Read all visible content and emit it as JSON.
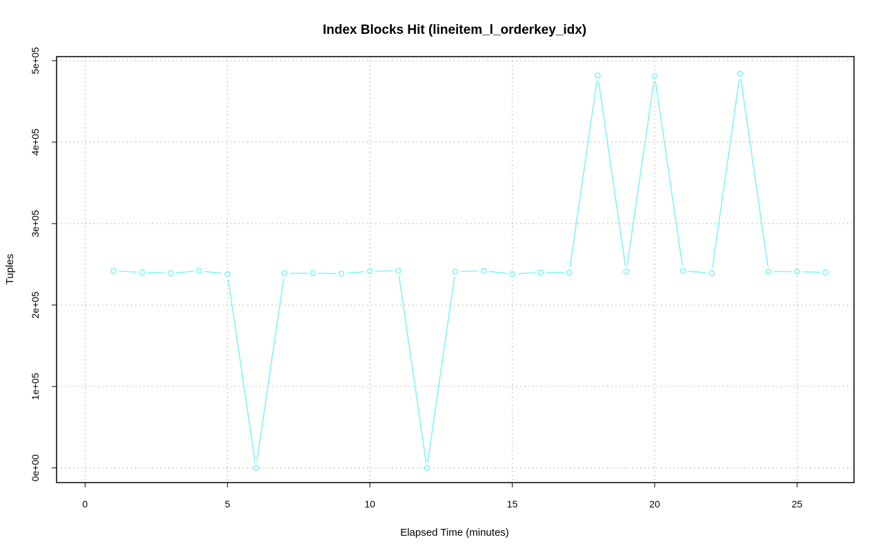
{
  "chart_data": {
    "type": "line",
    "title": "Index Blocks Hit (lineitem_l_orderkey_idx)",
    "xlabel": "Elapsed Time (minutes)",
    "ylabel": "Tuples",
    "xlim": [
      -1,
      27
    ],
    "ylim": [
      -18000,
      505000
    ],
    "x_ticks": [
      0,
      5,
      10,
      15,
      20,
      25
    ],
    "x_tick_labels": [
      "0",
      "5",
      "10",
      "15",
      "20",
      "25"
    ],
    "y_ticks": [
      0,
      100000,
      200000,
      300000,
      400000,
      500000
    ],
    "y_tick_labels": [
      "0e+00",
      "1e+05",
      "2e+05",
      "3e+05",
      "4e+05",
      "5e+05"
    ],
    "grid": true,
    "series_color": "#7ff7f7",
    "x": [
      1,
      2,
      3,
      4,
      5,
      6,
      7,
      8,
      9,
      10,
      11,
      12,
      13,
      14,
      15,
      16,
      17,
      18,
      19,
      20,
      21,
      22,
      23,
      24,
      25,
      26
    ],
    "y": [
      242000,
      240000,
      239000,
      242000,
      238000,
      0,
      239000,
      239000,
      238500,
      241500,
      242000,
      0,
      241000,
      242000,
      238000,
      240000,
      240000,
      482000,
      241000,
      481000,
      242000,
      239000,
      484000,
      241000,
      241000,
      240000
    ]
  }
}
